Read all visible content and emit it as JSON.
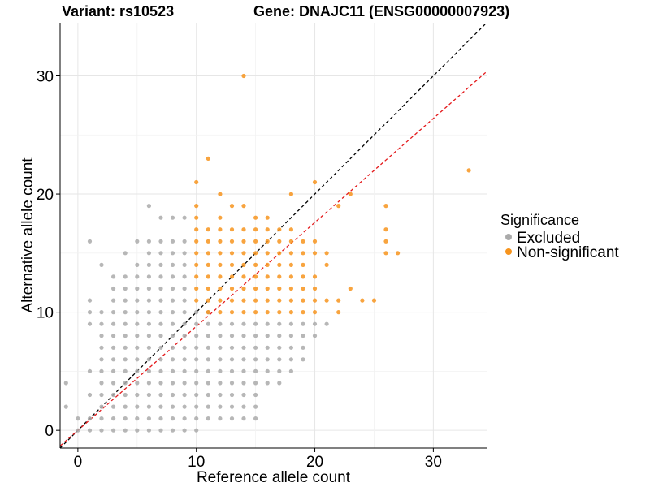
{
  "chart_data": {
    "type": "scatter",
    "title_left": "Variant: rs10523",
    "title_right": "Gene: DNAJC11 (ENSG00000007923)",
    "xlabel": "Reference allele count",
    "ylabel": "Alternative allele count",
    "xlim": [
      -1.5,
      34.5
    ],
    "ylim": [
      -1.5,
      34.5
    ],
    "x_ticks": [
      0,
      10,
      20,
      30
    ],
    "y_ticks": [
      0,
      10,
      20,
      30
    ],
    "grid": true,
    "legend": {
      "title": "Significance",
      "position": "right",
      "entries": [
        {
          "label": "Excluded",
          "color": "#aaaaaa"
        },
        {
          "label": "Non-significant",
          "color": "#f7941d"
        }
      ]
    },
    "reference_lines": [
      {
        "slope": 1,
        "intercept": 0,
        "color": "#000000",
        "style": "dashed"
      },
      {
        "slope": 0.88,
        "intercept": 0,
        "color": "#e41a1c",
        "style": "dashed"
      }
    ],
    "series": [
      {
        "name": "Excluded",
        "color": "#aaaaaa",
        "points": [
          [
            -1,
            4
          ],
          [
            -1,
            2
          ],
          [
            0,
            0
          ],
          [
            0,
            1
          ],
          [
            1,
            16
          ],
          [
            1,
            11
          ],
          [
            1,
            10
          ],
          [
            1,
            9
          ],
          [
            1,
            5
          ],
          [
            1,
            3
          ],
          [
            1,
            1
          ],
          [
            1,
            0
          ],
          [
            2,
            14
          ],
          [
            2,
            10
          ],
          [
            2,
            9
          ],
          [
            2,
            8
          ],
          [
            2,
            7
          ],
          [
            2,
            6
          ],
          [
            2,
            5
          ],
          [
            2,
            4
          ],
          [
            2,
            3
          ],
          [
            2,
            2
          ],
          [
            2,
            1
          ],
          [
            2,
            0
          ],
          [
            3,
            13
          ],
          [
            3,
            12
          ],
          [
            3,
            11
          ],
          [
            3,
            10
          ],
          [
            3,
            9
          ],
          [
            3,
            8
          ],
          [
            3,
            7
          ],
          [
            3,
            6
          ],
          [
            3,
            5
          ],
          [
            3,
            4
          ],
          [
            3,
            3
          ],
          [
            3,
            2
          ],
          [
            3,
            1
          ],
          [
            3,
            0
          ],
          [
            4,
            15
          ],
          [
            4,
            13
          ],
          [
            4,
            12
          ],
          [
            4,
            11
          ],
          [
            4,
            10
          ],
          [
            4,
            9
          ],
          [
            4,
            8
          ],
          [
            4,
            7
          ],
          [
            4,
            6
          ],
          [
            4,
            5
          ],
          [
            4,
            4
          ],
          [
            4,
            3
          ],
          [
            4,
            2
          ],
          [
            4,
            1
          ],
          [
            4,
            0
          ],
          [
            5,
            16
          ],
          [
            5,
            14
          ],
          [
            5,
            13
          ],
          [
            5,
            12
          ],
          [
            5,
            11
          ],
          [
            5,
            10
          ],
          [
            5,
            9
          ],
          [
            5,
            8
          ],
          [
            5,
            7
          ],
          [
            5,
            6
          ],
          [
            5,
            5
          ],
          [
            5,
            4
          ],
          [
            5,
            3
          ],
          [
            5,
            2
          ],
          [
            5,
            1
          ],
          [
            5,
            0
          ],
          [
            6,
            19
          ],
          [
            6,
            16
          ],
          [
            6,
            15
          ],
          [
            6,
            14
          ],
          [
            6,
            13
          ],
          [
            6,
            12
          ],
          [
            6,
            11
          ],
          [
            6,
            10
          ],
          [
            6,
            9
          ],
          [
            6,
            8
          ],
          [
            6,
            7
          ],
          [
            6,
            6
          ],
          [
            6,
            5
          ],
          [
            6,
            4
          ],
          [
            6,
            3
          ],
          [
            6,
            2
          ],
          [
            6,
            1
          ],
          [
            6,
            0
          ],
          [
            7,
            18
          ],
          [
            7,
            16
          ],
          [
            7,
            15
          ],
          [
            7,
            14
          ],
          [
            7,
            13
          ],
          [
            7,
            12
          ],
          [
            7,
            11
          ],
          [
            7,
            10
          ],
          [
            7,
            9
          ],
          [
            7,
            8
          ],
          [
            7,
            7
          ],
          [
            7,
            6
          ],
          [
            7,
            5
          ],
          [
            7,
            4
          ],
          [
            7,
            3
          ],
          [
            7,
            2
          ],
          [
            7,
            1
          ],
          [
            7,
            0
          ],
          [
            8,
            18
          ],
          [
            8,
            16
          ],
          [
            8,
            15
          ],
          [
            8,
            14
          ],
          [
            8,
            13
          ],
          [
            8,
            12
          ],
          [
            8,
            11
          ],
          [
            8,
            10
          ],
          [
            8,
            9
          ],
          [
            8,
            8
          ],
          [
            8,
            7
          ],
          [
            8,
            6
          ],
          [
            8,
            5
          ],
          [
            8,
            4
          ],
          [
            8,
            3
          ],
          [
            8,
            2
          ],
          [
            8,
            1
          ],
          [
            8,
            0
          ],
          [
            9,
            18
          ],
          [
            9,
            16
          ],
          [
            9,
            15
          ],
          [
            9,
            14
          ],
          [
            9,
            13
          ],
          [
            9,
            12
          ],
          [
            9,
            11
          ],
          [
            9,
            10
          ],
          [
            9,
            9
          ],
          [
            9,
            8
          ],
          [
            9,
            7
          ],
          [
            9,
            6
          ],
          [
            9,
            5
          ],
          [
            9,
            4
          ],
          [
            9,
            3
          ],
          [
            9,
            2
          ],
          [
            9,
            1
          ],
          [
            9,
            0
          ],
          [
            10,
            10
          ],
          [
            10,
            9
          ],
          [
            10,
            8
          ],
          [
            10,
            7
          ],
          [
            10,
            6
          ],
          [
            10,
            5
          ],
          [
            10,
            4
          ],
          [
            10,
            3
          ],
          [
            10,
            2
          ],
          [
            10,
            1
          ],
          [
            10,
            0
          ],
          [
            11,
            10
          ],
          [
            11,
            9
          ],
          [
            11,
            8
          ],
          [
            11,
            7
          ],
          [
            11,
            6
          ],
          [
            11,
            5
          ],
          [
            11,
            4
          ],
          [
            11,
            3
          ],
          [
            11,
            2
          ],
          [
            11,
            1
          ],
          [
            12,
            9
          ],
          [
            12,
            8
          ],
          [
            12,
            7
          ],
          [
            12,
            6
          ],
          [
            12,
            5
          ],
          [
            12,
            4
          ],
          [
            12,
            3
          ],
          [
            12,
            2
          ],
          [
            12,
            1
          ],
          [
            13,
            9
          ],
          [
            13,
            8
          ],
          [
            13,
            7
          ],
          [
            13,
            6
          ],
          [
            13,
            5
          ],
          [
            13,
            4
          ],
          [
            13,
            3
          ],
          [
            13,
            2
          ],
          [
            13,
            1
          ],
          [
            14,
            9
          ],
          [
            14,
            8
          ],
          [
            14,
            7
          ],
          [
            14,
            6
          ],
          [
            14,
            5
          ],
          [
            14,
            4
          ],
          [
            14,
            3
          ],
          [
            14,
            2
          ],
          [
            14,
            1
          ],
          [
            15,
            9
          ],
          [
            15,
            8
          ],
          [
            15,
            7
          ],
          [
            15,
            6
          ],
          [
            15,
            5
          ],
          [
            15,
            4
          ],
          [
            15,
            3
          ],
          [
            15,
            2
          ],
          [
            15,
            1
          ],
          [
            16,
            9
          ],
          [
            16,
            8
          ],
          [
            16,
            7
          ],
          [
            16,
            6
          ],
          [
            16,
            5
          ],
          [
            16,
            4
          ],
          [
            17,
            9
          ],
          [
            17,
            8
          ],
          [
            17,
            7
          ],
          [
            17,
            6
          ],
          [
            17,
            5
          ],
          [
            17,
            4
          ],
          [
            18,
            9
          ],
          [
            18,
            8
          ],
          [
            18,
            7
          ],
          [
            18,
            6
          ],
          [
            18,
            5
          ],
          [
            19,
            9
          ],
          [
            19,
            8
          ],
          [
            19,
            7
          ],
          [
            19,
            6
          ],
          [
            20,
            9
          ],
          [
            20,
            8
          ],
          [
            21,
            9
          ]
        ]
      },
      {
        "name": "Non-significant",
        "color": "#f7941d",
        "points": [
          [
            14,
            30
          ],
          [
            11,
            23
          ],
          [
            10,
            21
          ],
          [
            12,
            20
          ],
          [
            20,
            21
          ],
          [
            33,
            22
          ],
          [
            18,
            20
          ],
          [
            23,
            20
          ],
          [
            10,
            19
          ],
          [
            13,
            19
          ],
          [
            14,
            19
          ],
          [
            22,
            19
          ],
          [
            26,
            19
          ],
          [
            10,
            18
          ],
          [
            12,
            18
          ],
          [
            15,
            18
          ],
          [
            16,
            18
          ],
          [
            10,
            17
          ],
          [
            11,
            17
          ],
          [
            12,
            17
          ],
          [
            13,
            17
          ],
          [
            14,
            17
          ],
          [
            15,
            17
          ],
          [
            16,
            17
          ],
          [
            17,
            17
          ],
          [
            18,
            17
          ],
          [
            26,
            17
          ],
          [
            10,
            16
          ],
          [
            11,
            16
          ],
          [
            12,
            16
          ],
          [
            13,
            16
          ],
          [
            14,
            16
          ],
          [
            15,
            16
          ],
          [
            16,
            16
          ],
          [
            17,
            16
          ],
          [
            18,
            16
          ],
          [
            19,
            16
          ],
          [
            20,
            16
          ],
          [
            26,
            16
          ],
          [
            10,
            15
          ],
          [
            11,
            15
          ],
          [
            12,
            15
          ],
          [
            13,
            15
          ],
          [
            14,
            15
          ],
          [
            15,
            15
          ],
          [
            16,
            15
          ],
          [
            17,
            15
          ],
          [
            18,
            15
          ],
          [
            19,
            15
          ],
          [
            20,
            15
          ],
          [
            21,
            15
          ],
          [
            26,
            15
          ],
          [
            27,
            15
          ],
          [
            10,
            14
          ],
          [
            11,
            14
          ],
          [
            12,
            14
          ],
          [
            13,
            14
          ],
          [
            14,
            14
          ],
          [
            15,
            14
          ],
          [
            16,
            14
          ],
          [
            17,
            14
          ],
          [
            18,
            14
          ],
          [
            19,
            14
          ],
          [
            21,
            14
          ],
          [
            10,
            13
          ],
          [
            11,
            13
          ],
          [
            12,
            13
          ],
          [
            13,
            13
          ],
          [
            14,
            13
          ],
          [
            15,
            13
          ],
          [
            16,
            13
          ],
          [
            17,
            13
          ],
          [
            18,
            13
          ],
          [
            19,
            13
          ],
          [
            20,
            13
          ],
          [
            10,
            12
          ],
          [
            11,
            12
          ],
          [
            12,
            12
          ],
          [
            13,
            12
          ],
          [
            14,
            12
          ],
          [
            15,
            12
          ],
          [
            16,
            12
          ],
          [
            17,
            12
          ],
          [
            18,
            12
          ],
          [
            19,
            12
          ],
          [
            20,
            12
          ],
          [
            23,
            12
          ],
          [
            10,
            11
          ],
          [
            11,
            11
          ],
          [
            12,
            11
          ],
          [
            13,
            11
          ],
          [
            14,
            11
          ],
          [
            15,
            11
          ],
          [
            16,
            11
          ],
          [
            17,
            11
          ],
          [
            18,
            11
          ],
          [
            19,
            11
          ],
          [
            20,
            11
          ],
          [
            21,
            11
          ],
          [
            22,
            11
          ],
          [
            24,
            11
          ],
          [
            25,
            11
          ],
          [
            11,
            10
          ],
          [
            12,
            10
          ],
          [
            13,
            10
          ],
          [
            14,
            10
          ],
          [
            15,
            10
          ],
          [
            16,
            10
          ],
          [
            17,
            10
          ],
          [
            18,
            10
          ],
          [
            19,
            10
          ],
          [
            20,
            10
          ],
          [
            22,
            10
          ]
        ]
      }
    ]
  }
}
